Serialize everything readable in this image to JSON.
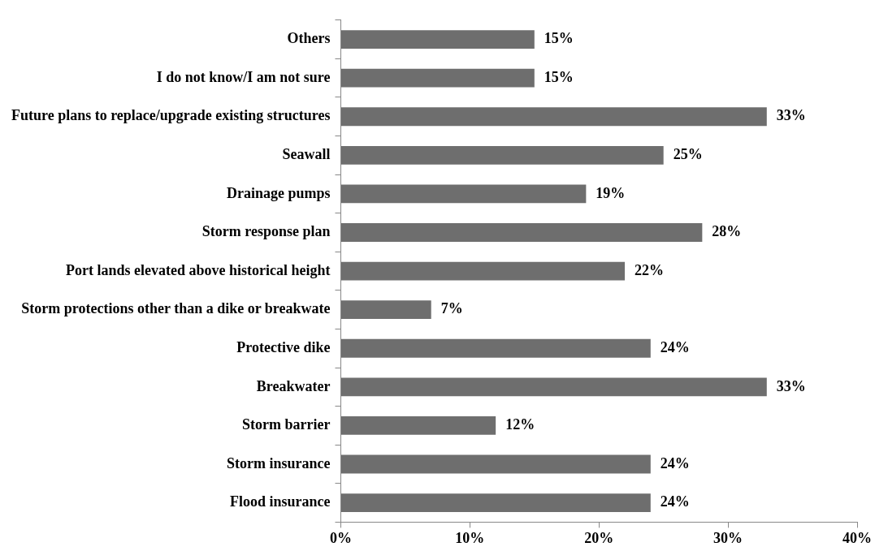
{
  "chart_data": {
    "type": "bar",
    "orientation": "horizontal",
    "categories": [
      "Others",
      "I do not know/I am not sure",
      "Future plans to replace/upgrade existing structures",
      "Seawall",
      "Drainage pumps",
      "Storm response plan",
      "Port lands elevated above historical height",
      "Storm protections other than a dike or breakwate",
      "Protective dike",
      "Breakwater",
      "Storm barrier",
      "Storm insurance",
      "Flood insurance"
    ],
    "values": [
      15,
      15,
      33,
      25,
      19,
      28,
      22,
      7,
      24,
      33,
      12,
      24,
      24
    ],
    "value_labels": [
      "15%",
      "15%",
      "33%",
      "25%",
      "19%",
      "28%",
      "22%",
      "7%",
      "24%",
      "33%",
      "12%",
      "24%",
      "24%"
    ],
    "color": "#6e6e6e",
    "xlim": [
      0,
      40
    ],
    "xticks": [
      {
        "value": 0,
        "label": "0%"
      },
      {
        "value": 10,
        "label": "10%"
      },
      {
        "value": 20,
        "label": "20%"
      },
      {
        "value": 30,
        "label": "30%"
      },
      {
        "value": 40,
        "label": "40%"
      }
    ],
    "grid": false,
    "legend": false
  }
}
